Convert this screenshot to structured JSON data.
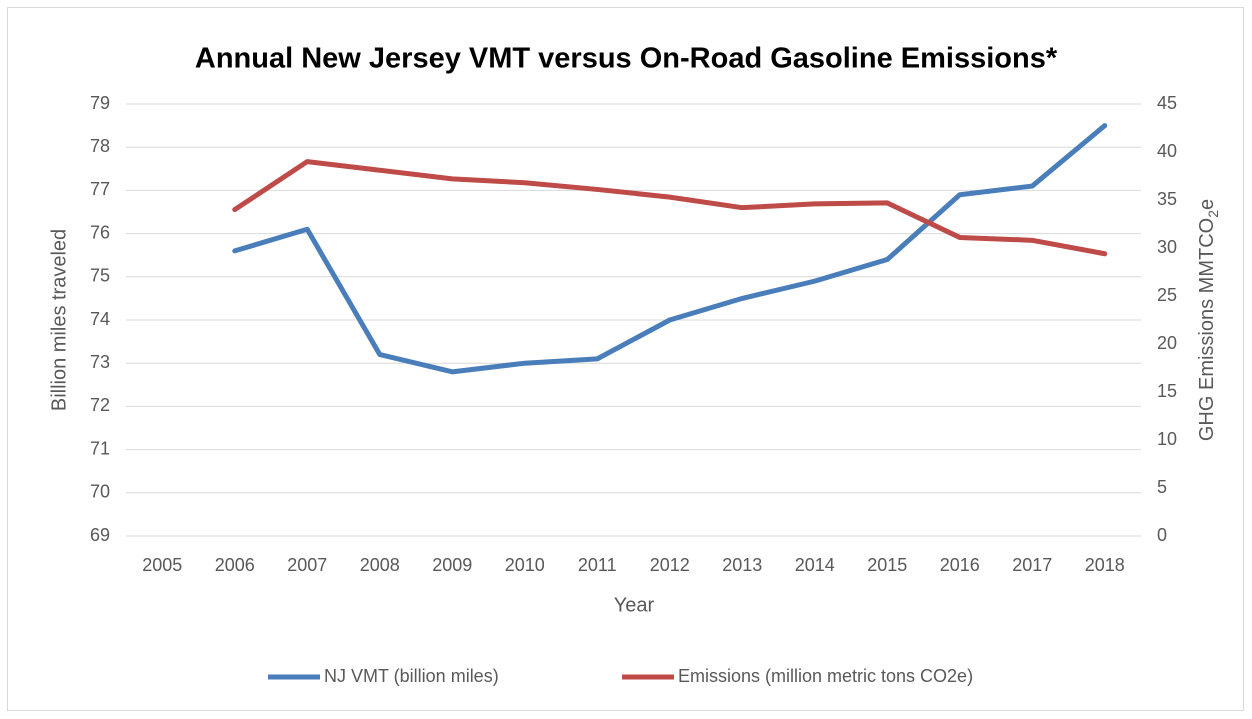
{
  "chart_data": {
    "type": "line",
    "title": "Annual New Jersey VMT versus On-Road Gasoline Emissions*",
    "x_label": "Year",
    "y_label": "Billion miles traveled",
    "y2_label": {
      "text": "GHG Emissions MMTCO",
      "sub": "2",
      "suffix": "e"
    },
    "categories": [
      "2005",
      "2006",
      "2007",
      "2008",
      "2009",
      "2010",
      "2011",
      "2012",
      "2013",
      "2014",
      "2015",
      "2016",
      "2017",
      "2018"
    ],
    "series": [
      {
        "name": "NJ VMT (billion miles)",
        "color": "#4a7ebb",
        "values": [
          null,
          75.6,
          76.1,
          73.2,
          72.8,
          73.0,
          73.1,
          74.0,
          74.5,
          74.9,
          75.4,
          76.9,
          77.1,
          78.5
        ]
      },
      {
        "name": "Emissions (million metric tons CO2e)",
        "color": "#be4b48",
        "axis": "y2",
        "values": [
          null,
          34.0,
          39.0,
          38.1,
          37.2,
          36.8,
          36.1,
          35.3,
          34.2,
          34.6,
          34.7,
          31.1,
          30.8,
          29.4
        ]
      }
    ],
    "ylim": [
      69,
      79
    ],
    "yticks": [
      69,
      70,
      71,
      72,
      73,
      74,
      75,
      76,
      77,
      78,
      79
    ],
    "y2lim": [
      0,
      45
    ],
    "y2ticks": [
      0,
      5,
      10,
      15,
      20,
      25,
      30,
      35,
      40,
      45
    ],
    "grid": true,
    "legend": "bottom"
  }
}
